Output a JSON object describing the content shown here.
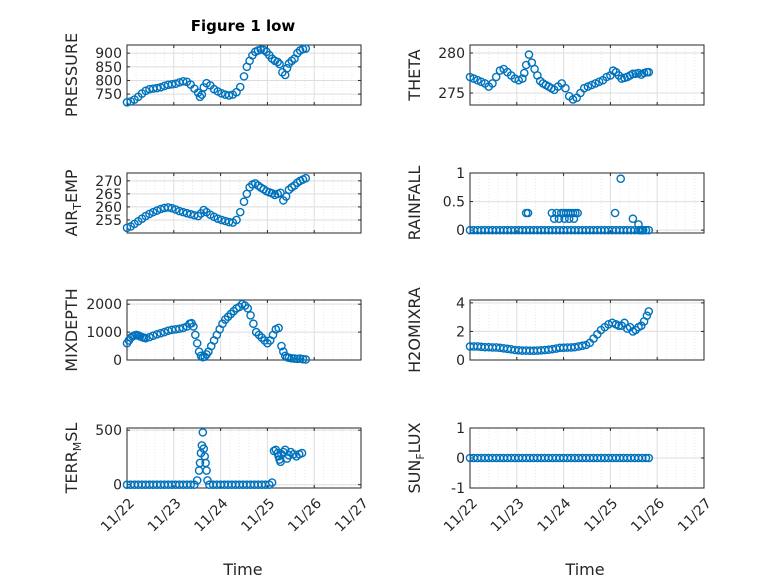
{
  "figure_title": "Figure 1 low",
  "xlabel": "Time",
  "x_tick_labels": [
    "11/22",
    "11/23",
    "11/24",
    "11/25",
    "11/26",
    "11/27"
  ],
  "marker_color": "#0072BD",
  "chart_data": [
    {
      "type": "scatter",
      "ylabel": "PRESSURE",
      "xlim": [
        0,
        5
      ],
      "ylim": [
        710,
        930
      ],
      "yticks": [
        750,
        800,
        850,
        900
      ],
      "yticklabels": [
        "750",
        "800",
        "850",
        "900"
      ],
      "x": [
        0.0,
        0.08,
        0.16,
        0.24,
        0.32,
        0.4,
        0.48,
        0.56,
        0.64,
        0.72,
        0.8,
        0.88,
        0.96,
        1.04,
        1.12,
        1.2,
        1.28,
        1.36,
        1.44,
        1.52,
        1.56,
        1.6,
        1.64,
        1.7,
        1.78,
        1.86,
        1.94,
        2.02,
        2.1,
        2.18,
        2.26,
        2.34,
        2.42,
        2.5,
        2.56,
        2.62,
        2.68,
        2.74,
        2.8,
        2.86,
        2.92,
        2.98,
        3.04,
        3.1,
        3.16,
        3.22,
        3.26,
        3.32,
        3.38,
        3.42,
        3.46,
        3.52,
        3.58,
        3.64,
        3.7,
        3.76,
        3.82
      ],
      "y": [
        720,
        723,
        730,
        740,
        752,
        762,
        768,
        770,
        772,
        775,
        780,
        784,
        786,
        788,
        793,
        797,
        795,
        785,
        770,
        755,
        740,
        748,
        775,
        790,
        782,
        768,
        760,
        753,
        748,
        745,
        748,
        757,
        776,
        815,
        850,
        872,
        892,
        905,
        910,
        913,
        912,
        905,
        893,
        880,
        872,
        868,
        860,
        830,
        820,
        845,
        862,
        872,
        880,
        900,
        910,
        915,
        917
      ]
    },
    {
      "type": "scatter",
      "ylabel": "THETA",
      "xlim": [
        0,
        5
      ],
      "ylim": [
        273.5,
        281
      ],
      "yticks": [
        275,
        280
      ],
      "yticklabels": [
        "275",
        "280"
      ],
      "x": [
        0.0,
        0.08,
        0.16,
        0.24,
        0.32,
        0.4,
        0.48,
        0.56,
        0.64,
        0.72,
        0.8,
        0.88,
        0.96,
        1.04,
        1.12,
        1.16,
        1.2,
        1.26,
        1.32,
        1.38,
        1.44,
        1.5,
        1.56,
        1.62,
        1.68,
        1.74,
        1.8,
        1.88,
        1.96,
        2.04,
        2.12,
        2.2,
        2.28,
        2.36,
        2.44,
        2.52,
        2.6,
        2.68,
        2.76,
        2.84,
        2.92,
        3.0,
        3.06,
        3.12,
        3.18,
        3.24,
        3.3,
        3.36,
        3.42,
        3.48,
        3.54,
        3.6,
        3.66,
        3.72,
        3.78,
        3.82
      ],
      "y": [
        277,
        276.8,
        276.6,
        276.4,
        276.2,
        275.8,
        276.2,
        277,
        277.8,
        278,
        277.6,
        277.2,
        276.8,
        276.6,
        276.8,
        277.5,
        278.5,
        279.8,
        278.8,
        278,
        277.2,
        276.5,
        276.2,
        276,
        275.8,
        275.6,
        275.4,
        275.8,
        276.2,
        275.6,
        274.6,
        274.2,
        274.4,
        275,
        275.6,
        275.8,
        276,
        276.2,
        276.4,
        276.6,
        277,
        277.2,
        277.8,
        277.6,
        277.2,
        276.8,
        276.9,
        277,
        277.2,
        277.4,
        277.4,
        277.5,
        277.3,
        277.5,
        277.6,
        277.6
      ]
    },
    {
      "type": "scatter",
      "ylabel": "AIR_TEMP",
      "xlim": [
        0,
        5
      ],
      "ylim": [
        250,
        273
      ],
      "yticks": [
        255,
        260,
        265,
        270
      ],
      "yticklabels": [
        "255",
        "260",
        "265",
        "270"
      ],
      "x": [
        0.0,
        0.08,
        0.16,
        0.24,
        0.32,
        0.4,
        0.48,
        0.56,
        0.64,
        0.72,
        0.8,
        0.88,
        0.96,
        1.04,
        1.12,
        1.2,
        1.28,
        1.36,
        1.44,
        1.52,
        1.58,
        1.64,
        1.7,
        1.78,
        1.86,
        1.94,
        2.02,
        2.1,
        2.18,
        2.26,
        2.34,
        2.42,
        2.5,
        2.56,
        2.62,
        2.68,
        2.74,
        2.8,
        2.86,
        2.92,
        2.98,
        3.04,
        3.1,
        3.16,
        3.22,
        3.28,
        3.34,
        3.4,
        3.46,
        3.52,
        3.58,
        3.64,
        3.7,
        3.76,
        3.82
      ],
      "y": [
        252,
        252.5,
        253.5,
        254.5,
        255.5,
        256.5,
        257.3,
        258,
        258.6,
        259.2,
        259.6,
        259.8,
        259.5,
        259,
        258.4,
        258,
        257.6,
        257.2,
        256.8,
        256.5,
        257.5,
        258.8,
        258,
        257,
        256.2,
        255.5,
        255,
        254.6,
        254.2,
        254,
        255,
        258,
        262,
        265,
        267.5,
        268.6,
        269,
        268.2,
        267.4,
        266.8,
        266,
        265.6,
        265.2,
        264.6,
        265,
        265.4,
        262.5,
        264,
        266.6,
        267.5,
        268.2,
        269.3,
        270,
        270.5,
        271
      ]
    },
    {
      "type": "scatter",
      "ylabel": "RAINFALL",
      "xlim": [
        0,
        5
      ],
      "ylim": [
        -0.05,
        1
      ],
      "yticks": [
        0,
        0.5,
        1
      ],
      "yticklabels": [
        "0",
        "0.5",
        "1"
      ],
      "x": [
        0.0,
        0.08,
        0.16,
        0.24,
        0.32,
        0.4,
        0.48,
        0.56,
        0.64,
        0.72,
        0.8,
        0.88,
        0.96,
        1.04,
        1.12,
        1.2,
        1.28,
        1.36,
        1.44,
        1.52,
        1.6,
        1.68,
        1.76,
        1.84,
        1.92,
        2.0,
        2.08,
        2.16,
        2.24,
        2.32,
        2.4,
        2.48,
        2.56,
        2.64,
        2.72,
        2.8,
        2.88,
        2.96,
        3.04,
        3.12,
        3.2,
        3.28,
        3.36,
        3.44,
        3.52,
        3.6,
        3.68,
        3.76,
        3.82,
        1.2,
        1.24,
        1.75,
        1.85,
        1.95,
        2.0,
        2.05,
        2.1,
        2.15,
        2.2,
        2.25,
        2.3,
        1.8,
        1.9,
        2.02,
        2.12,
        2.22,
        3.1,
        3.22,
        3.48,
        3.6,
        3.64,
        3.7
      ],
      "y": [
        0,
        0,
        0,
        0,
        0,
        0,
        0,
        0,
        0,
        0,
        0,
        0,
        0,
        0,
        0,
        0,
        0,
        0,
        0,
        0,
        0,
        0,
        0,
        0,
        0,
        0,
        0,
        0,
        0,
        0,
        0,
        0,
        0,
        0,
        0,
        0,
        0,
        0,
        0,
        0,
        0,
        0,
        0,
        0,
        0,
        0,
        0,
        0,
        0,
        0.3,
        0.3,
        0.3,
        0.3,
        0.3,
        0.3,
        0.3,
        0.3,
        0.3,
        0.3,
        0.3,
        0.3,
        0.2,
        0.2,
        0.2,
        0.2,
        0.2,
        0.3,
        0.9,
        0.2,
        0.1,
        0,
        0
      ]
    },
    {
      "type": "scatter",
      "ylabel": "MIXDEPTH",
      "xlim": [
        0,
        5
      ],
      "ylim": [
        0,
        2150
      ],
      "yticks": [
        0,
        1000,
        2000
      ],
      "yticklabels": [
        "0",
        "1000",
        "2000"
      ],
      "x": [
        0.0,
        0.04,
        0.08,
        0.12,
        0.16,
        0.2,
        0.24,
        0.28,
        0.32,
        0.36,
        0.4,
        0.48,
        0.56,
        0.64,
        0.72,
        0.8,
        0.88,
        0.96,
        1.04,
        1.12,
        1.2,
        1.28,
        1.34,
        1.38,
        1.42,
        1.46,
        1.5,
        1.54,
        1.58,
        1.62,
        1.66,
        1.7,
        1.74,
        1.8,
        1.86,
        1.92,
        1.98,
        2.04,
        2.1,
        2.16,
        2.22,
        2.28,
        2.34,
        2.4,
        2.46,
        2.52,
        2.58,
        2.64,
        2.7,
        2.76,
        2.82,
        2.88,
        2.94,
        3.0,
        3.06,
        3.12,
        3.18,
        3.24,
        3.3,
        3.34,
        3.38,
        3.42,
        3.46,
        3.52,
        3.58,
        3.64,
        3.7,
        3.76,
        3.82
      ],
      "y": [
        600,
        700,
        800,
        850,
        880,
        900,
        880,
        850,
        820,
        800,
        780,
        820,
        870,
        920,
        960,
        1000,
        1050,
        1080,
        1100,
        1120,
        1150,
        1200,
        1300,
        1320,
        1200,
        900,
        600,
        300,
        150,
        100,
        120,
        200,
        300,
        500,
        700,
        900,
        1100,
        1300,
        1450,
        1550,
        1650,
        1750,
        1850,
        1900,
        2000,
        1950,
        1850,
        1600,
        1300,
        1000,
        900,
        800,
        700,
        600,
        700,
        900,
        1100,
        1150,
        500,
        300,
        150,
        100,
        80,
        60,
        50,
        40,
        50,
        30,
        20
      ]
    },
    {
      "type": "scatter",
      "ylabel": "H2OMIXRA",
      "xlim": [
        0,
        5
      ],
      "ylim": [
        0,
        4.2
      ],
      "yticks": [
        0,
        2,
        4
      ],
      "yticklabels": [
        "0",
        "2",
        "4"
      ],
      "x": [
        0.0,
        0.08,
        0.16,
        0.24,
        0.32,
        0.4,
        0.48,
        0.56,
        0.64,
        0.72,
        0.8,
        0.88,
        0.96,
        1.04,
        1.12,
        1.2,
        1.28,
        1.36,
        1.44,
        1.52,
        1.6,
        1.68,
        1.76,
        1.84,
        1.92,
        2.0,
        2.08,
        2.16,
        2.24,
        2.32,
        2.4,
        2.48,
        2.56,
        2.64,
        2.72,
        2.8,
        2.88,
        2.96,
        3.04,
        3.12,
        3.18,
        3.24,
        3.3,
        3.36,
        3.42,
        3.48,
        3.54,
        3.6,
        3.66,
        3.72,
        3.78,
        3.82
      ],
      "y": [
        0.95,
        0.95,
        0.95,
        0.92,
        0.9,
        0.9,
        0.88,
        0.88,
        0.85,
        0.82,
        0.78,
        0.75,
        0.7,
        0.68,
        0.66,
        0.66,
        0.65,
        0.65,
        0.66,
        0.68,
        0.7,
        0.72,
        0.76,
        0.8,
        0.85,
        0.86,
        0.87,
        0.88,
        0.9,
        0.95,
        1.0,
        1.05,
        1.2,
        1.5,
        1.8,
        2.1,
        2.3,
        2.5,
        2.6,
        2.5,
        2.4,
        2.4,
        2.6,
        2.2,
        2.3,
        2.0,
        2.1,
        2.3,
        2.4,
        2.7,
        3.1,
        3.4
      ]
    },
    {
      "type": "scatter",
      "ylabel": "TERR_MSL",
      "xlim": [
        0,
        5
      ],
      "ylim": [
        -30,
        520
      ],
      "yticks": [
        0,
        500
      ],
      "yticklabels": [
        "0",
        "500"
      ],
      "x": [
        0.0,
        0.08,
        0.16,
        0.24,
        0.32,
        0.4,
        0.48,
        0.56,
        0.64,
        0.72,
        0.8,
        0.88,
        0.96,
        1.04,
        1.12,
        1.2,
        1.28,
        1.36,
        1.44,
        1.5,
        1.54,
        1.56,
        1.58,
        1.6,
        1.62,
        1.64,
        1.66,
        1.68,
        1.7,
        1.72,
        1.76,
        1.84,
        1.92,
        2.0,
        2.08,
        2.16,
        2.24,
        2.32,
        2.4,
        2.48,
        2.56,
        2.64,
        2.72,
        2.8,
        2.88,
        2.96,
        3.04,
        3.1,
        3.14,
        3.18,
        3.22,
        3.24,
        3.26,
        3.28,
        3.3,
        3.34,
        3.38,
        3.42,
        3.46,
        3.5,
        3.56,
        3.62,
        3.68,
        3.74
      ],
      "y": [
        0,
        0,
        0,
        0,
        0,
        0,
        0,
        0,
        0,
        0,
        0,
        0,
        0,
        0,
        0,
        0,
        0,
        0,
        0,
        40,
        130,
        200,
        290,
        360,
        480,
        330,
        260,
        200,
        130,
        40,
        0,
        0,
        0,
        0,
        0,
        0,
        0,
        0,
        0,
        0,
        0,
        0,
        0,
        0,
        0,
        0,
        0,
        20,
        310,
        320,
        290,
        260,
        230,
        210,
        280,
        300,
        320,
        240,
        270,
        300,
        280,
        260,
        280,
        290
      ]
    },
    {
      "type": "scatter",
      "ylabel": "SUN_FLUX",
      "xlim": [
        0,
        5
      ],
      "ylim": [
        -1,
        1
      ],
      "yticks": [
        -1,
        0,
        1
      ],
      "yticklabels": [
        "-1",
        "0",
        "1"
      ],
      "x": [
        0.0,
        0.08,
        0.16,
        0.24,
        0.32,
        0.4,
        0.48,
        0.56,
        0.64,
        0.72,
        0.8,
        0.88,
        0.96,
        1.04,
        1.12,
        1.2,
        1.28,
        1.36,
        1.44,
        1.52,
        1.6,
        1.68,
        1.76,
        1.84,
        1.92,
        2.0,
        2.08,
        2.16,
        2.24,
        2.32,
        2.4,
        2.48,
        2.56,
        2.64,
        2.72,
        2.8,
        2.88,
        2.96,
        3.04,
        3.12,
        3.2,
        3.28,
        3.36,
        3.44,
        3.52,
        3.6,
        3.68,
        3.76,
        3.82
      ],
      "y": [
        0,
        0,
        0,
        0,
        0,
        0,
        0,
        0,
        0,
        0,
        0,
        0,
        0,
        0,
        0,
        0,
        0,
        0,
        0,
        0,
        0,
        0,
        0,
        0,
        0,
        0,
        0,
        0,
        0,
        0,
        0,
        0,
        0,
        0,
        0,
        0,
        0,
        0,
        0,
        0,
        0,
        0,
        0,
        0,
        0,
        0,
        0,
        0,
        0
      ]
    }
  ]
}
